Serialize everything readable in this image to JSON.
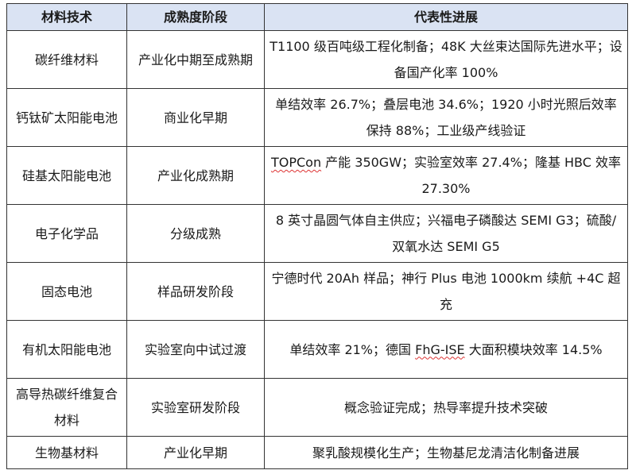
{
  "headers": [
    "材料技术",
    "成熟度阶段",
    "代表性进展"
  ],
  "rows": [
    {
      "material": "碳纤维材料",
      "stage": "产业化中期至成熟期",
      "pre": "",
      "mark": "",
      "progress": "T1100 级百吨级工程化制备；48K 大丝束达国际先进水平；设备国产化率 100%"
    },
    {
      "material": "钙钛矿太阳能电池",
      "stage": "商业化早期",
      "pre": "",
      "mark": "",
      "progress": "单结效率 26.7%；叠层电池 34.6%；1920 小时光照后效率保持 88%；工业级产线验证"
    },
    {
      "material": "硅基太阳能电池",
      "stage": "产业化成熟期",
      "pre": "",
      "mark": "TOPCon",
      "progress": " 产能 350GW；实验室效率 27.4%；隆基 HBC 效率 27.30%"
    },
    {
      "material": "电子化学品",
      "stage": "分级成熟",
      "pre": "",
      "mark": "",
      "progress": "8 英寸晶圆气体自主供应；兴福电子磷酸达 SEMI G3；硫酸/双氧水达 SEMI G5"
    },
    {
      "material": "固态电池",
      "stage": "样品研发阶段",
      "pre": "",
      "mark": "",
      "progress": "宁德时代 20Ah 样品；神行 Plus 电池 1000km 续航 +4C 超充"
    },
    {
      "material": "有机太阳能电池",
      "stage": "实验室向中试过渡",
      "pre": "单结效率 21%；德国 ",
      "mark": "FhG-ISE",
      "progress": " 大面积模块效率 14.5%"
    },
    {
      "material": "高导热碳纤维复合材料",
      "stage": "实验室研发阶段",
      "pre": "",
      "mark": "",
      "progress": "概念验证完成；热导率提升技术突破"
    },
    {
      "material": "生物基材料",
      "stage": "产业化早期",
      "pre": "",
      "mark": "",
      "progress": "聚乳酸规模化生产；生物基尼龙清洁化制备进展"
    }
  ],
  "colors": {
    "header_bg": "#dae3f3",
    "spellcheck": "#dd3333"
  }
}
